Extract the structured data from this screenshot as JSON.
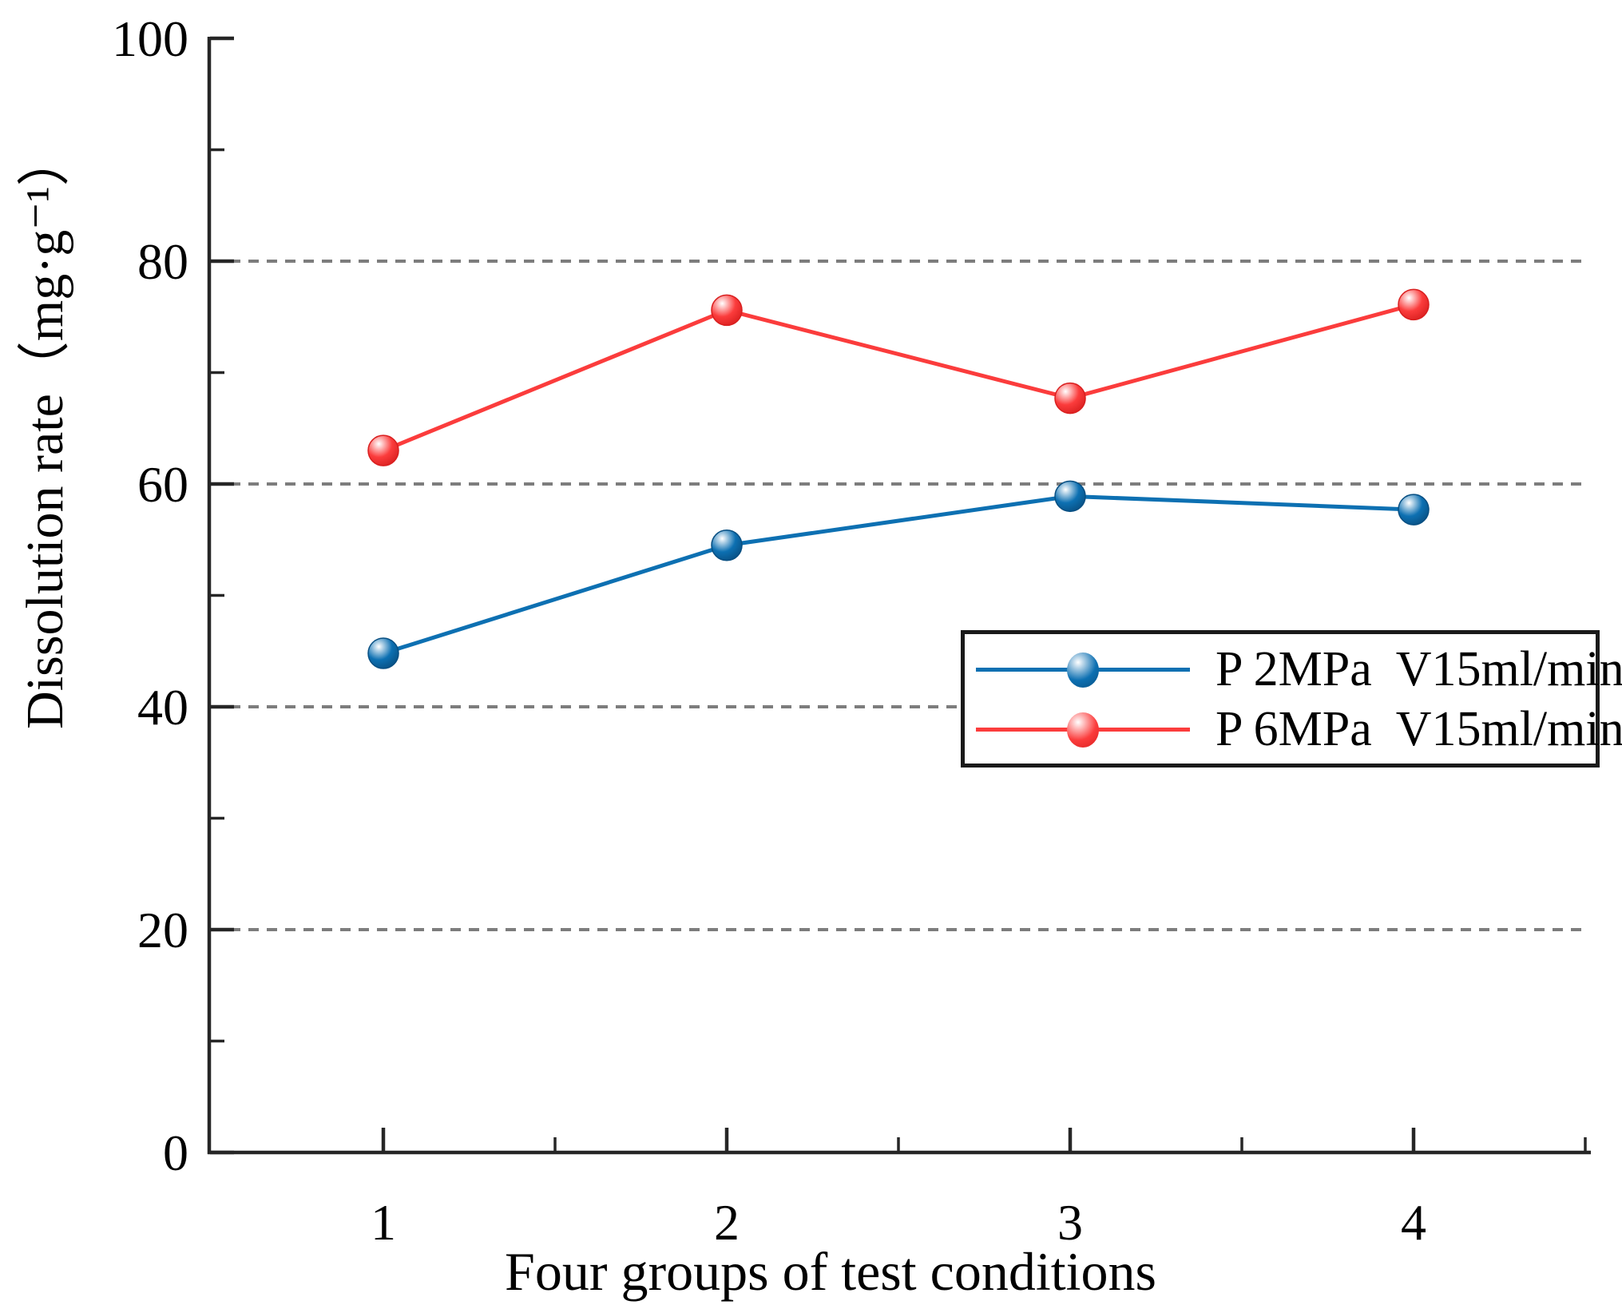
{
  "chart_data": {
    "type": "line",
    "title": "",
    "xlabel": "Four groups of test conditions",
    "ylabel": "Dissolution rate（mg·g⁻¹）",
    "x": [
      1,
      2,
      3,
      4
    ],
    "xtick_labels": [
      "1",
      "2",
      "3",
      "4"
    ],
    "x_minor_ticks": [
      1.5,
      2.5,
      3.5,
      4.5
    ],
    "yticks": [
      0,
      20,
      40,
      60,
      80,
      100
    ],
    "y_minor_ticks": [
      10,
      30,
      50,
      70,
      90
    ],
    "xlim": [
      0.5,
      4.5
    ],
    "ylim": [
      0,
      100
    ],
    "grid_y_values": [
      20,
      40,
      60,
      80
    ],
    "grid_style": "dashed",
    "grid_on": true,
    "legend_position": "center-right",
    "grid_color": "#7d7d7d",
    "axis_color": "#262626",
    "series": [
      {
        "name": "P 2MPa  V15ml/min",
        "color": "#0d70b2",
        "marker_edge": "#084f82",
        "values": [
          44.8,
          54.5,
          58.9,
          57.7
        ]
      },
      {
        "name": "P 6MPa  V15ml/min",
        "color": "#fb3c3c",
        "marker_edge": "#d91f1f",
        "values": [
          63.0,
          75.6,
          67.7,
          76.1
        ]
      }
    ]
  }
}
